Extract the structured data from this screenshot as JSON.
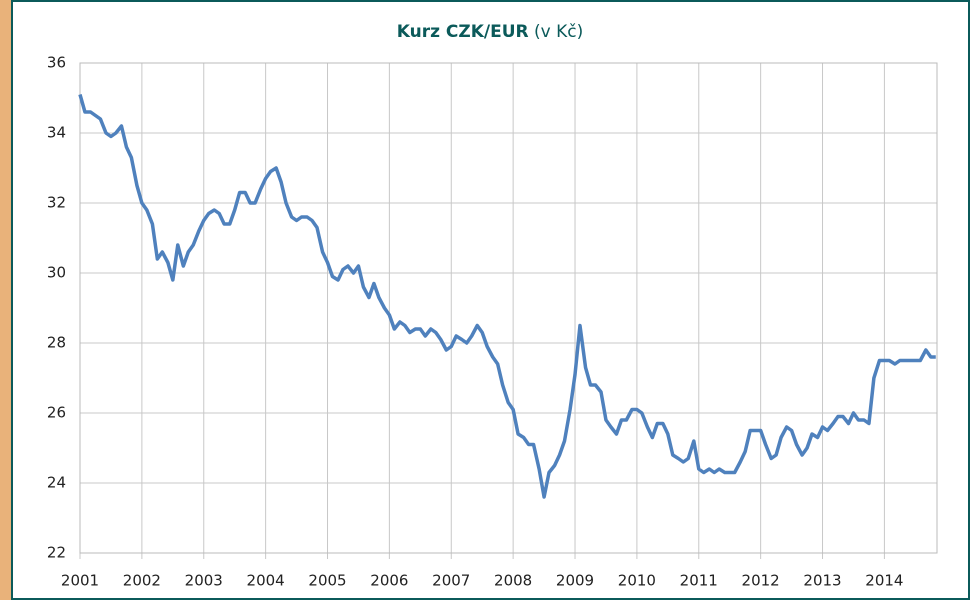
{
  "chart_data": {
    "type": "line",
    "title": "Kurz CZK/EUR",
    "subtitle": "(v Kč)",
    "x": [
      2001.0,
      2001.08,
      2001.17,
      2001.25,
      2001.33,
      2001.42,
      2001.5,
      2001.58,
      2001.67,
      2001.75,
      2001.83,
      2001.92,
      2002.0,
      2002.08,
      2002.17,
      2002.25,
      2002.33,
      2002.42,
      2002.5,
      2002.58,
      2002.67,
      2002.75,
      2002.83,
      2002.92,
      2003.0,
      2003.08,
      2003.17,
      2003.25,
      2003.33,
      2003.42,
      2003.5,
      2003.58,
      2003.67,
      2003.75,
      2003.83,
      2003.92,
      2004.0,
      2004.08,
      2004.17,
      2004.25,
      2004.33,
      2004.42,
      2004.5,
      2004.58,
      2004.67,
      2004.75,
      2004.83,
      2004.92,
      2005.0,
      2005.08,
      2005.17,
      2005.25,
      2005.33,
      2005.42,
      2005.5,
      2005.58,
      2005.67,
      2005.75,
      2005.83,
      2005.92,
      2006.0,
      2006.08,
      2006.17,
      2006.25,
      2006.33,
      2006.42,
      2006.5,
      2006.58,
      2006.67,
      2006.75,
      2006.83,
      2006.92,
      2007.0,
      2007.08,
      2007.17,
      2007.25,
      2007.33,
      2007.42,
      2007.5,
      2007.58,
      2007.67,
      2007.75,
      2007.83,
      2007.92,
      2008.0,
      2008.08,
      2008.17,
      2008.25,
      2008.33,
      2008.42,
      2008.5,
      2008.58,
      2008.67,
      2008.75,
      2008.83,
      2008.92,
      2009.0,
      2009.08,
      2009.17,
      2009.25,
      2009.33,
      2009.42,
      2009.5,
      2009.58,
      2009.67,
      2009.75,
      2009.83,
      2009.92,
      2010.0,
      2010.08,
      2010.17,
      2010.25,
      2010.33,
      2010.42,
      2010.5,
      2010.58,
      2010.67,
      2010.75,
      2010.83,
      2010.92,
      2011.0,
      2011.08,
      2011.17,
      2011.25,
      2011.33,
      2011.42,
      2011.5,
      2011.58,
      2011.67,
      2011.75,
      2011.83,
      2011.92,
      2012.0,
      2012.08,
      2012.17,
      2012.25,
      2012.33,
      2012.42,
      2012.5,
      2012.58,
      2012.67,
      2012.75,
      2012.83,
      2012.92,
      2013.0,
      2013.08,
      2013.17,
      2013.25,
      2013.33,
      2013.42,
      2013.5,
      2013.58,
      2013.67,
      2013.75,
      2013.83,
      2013.92,
      2014.0,
      2014.08,
      2014.17,
      2014.25,
      2014.33,
      2014.42,
      2014.5,
      2014.58,
      2014.67,
      2014.75,
      2014.83
    ],
    "series": [
      {
        "name": "CZK/EUR",
        "color": "#4f81bd",
        "values": [
          35.1,
          34.6,
          34.6,
          34.5,
          34.4,
          34.0,
          33.9,
          34.0,
          34.2,
          33.6,
          33.3,
          32.5,
          32.0,
          31.8,
          31.4,
          30.4,
          30.6,
          30.3,
          29.8,
          30.8,
          30.2,
          30.6,
          30.8,
          31.2,
          31.5,
          31.7,
          31.8,
          31.7,
          31.4,
          31.4,
          31.8,
          32.3,
          32.3,
          32.0,
          32.0,
          32.4,
          32.7,
          32.9,
          33.0,
          32.6,
          32.0,
          31.6,
          31.5,
          31.6,
          31.6,
          31.5,
          31.3,
          30.6,
          30.3,
          29.9,
          29.8,
          30.1,
          30.2,
          30.0,
          30.2,
          29.6,
          29.3,
          29.7,
          29.3,
          29.0,
          28.8,
          28.4,
          28.6,
          28.5,
          28.3,
          28.4,
          28.4,
          28.2,
          28.4,
          28.3,
          28.1,
          27.8,
          27.9,
          28.2,
          28.1,
          28.0,
          28.2,
          28.5,
          28.3,
          27.9,
          27.6,
          27.4,
          26.8,
          26.3,
          26.1,
          25.4,
          25.3,
          25.1,
          25.1,
          24.4,
          23.6,
          24.3,
          24.5,
          24.8,
          25.2,
          26.1,
          27.1,
          28.5,
          27.3,
          26.8,
          26.8,
          26.6,
          25.8,
          25.6,
          25.4,
          25.8,
          25.8,
          26.1,
          26.1,
          26.0,
          25.6,
          25.3,
          25.7,
          25.7,
          25.4,
          24.8,
          24.7,
          24.6,
          24.7,
          25.2,
          24.4,
          24.3,
          24.4,
          24.3,
          24.4,
          24.3,
          24.3,
          24.3,
          24.6,
          24.9,
          25.5,
          25.5,
          25.5,
          25.1,
          24.7,
          24.8,
          25.3,
          25.6,
          25.5,
          25.1,
          24.8,
          25.0,
          25.4,
          25.3,
          25.6,
          25.5,
          25.7,
          25.9,
          25.9,
          25.7,
          26.0,
          25.8,
          25.8,
          25.7,
          27.0,
          27.5,
          27.5,
          27.5,
          27.4,
          27.5,
          27.5,
          27.5,
          27.5,
          27.5,
          27.8,
          27.6,
          27.6
        ]
      }
    ],
    "xlim": [
      2001,
      2014.85
    ],
    "xticks": [
      2001,
      2002,
      2003,
      2004,
      2005,
      2006,
      2007,
      2008,
      2009,
      2010,
      2011,
      2012,
      2013,
      2014
    ],
    "ylim": [
      22,
      36
    ],
    "yticks": [
      22,
      24,
      26,
      28,
      30,
      32,
      34,
      36
    ],
    "grid": true
  }
}
